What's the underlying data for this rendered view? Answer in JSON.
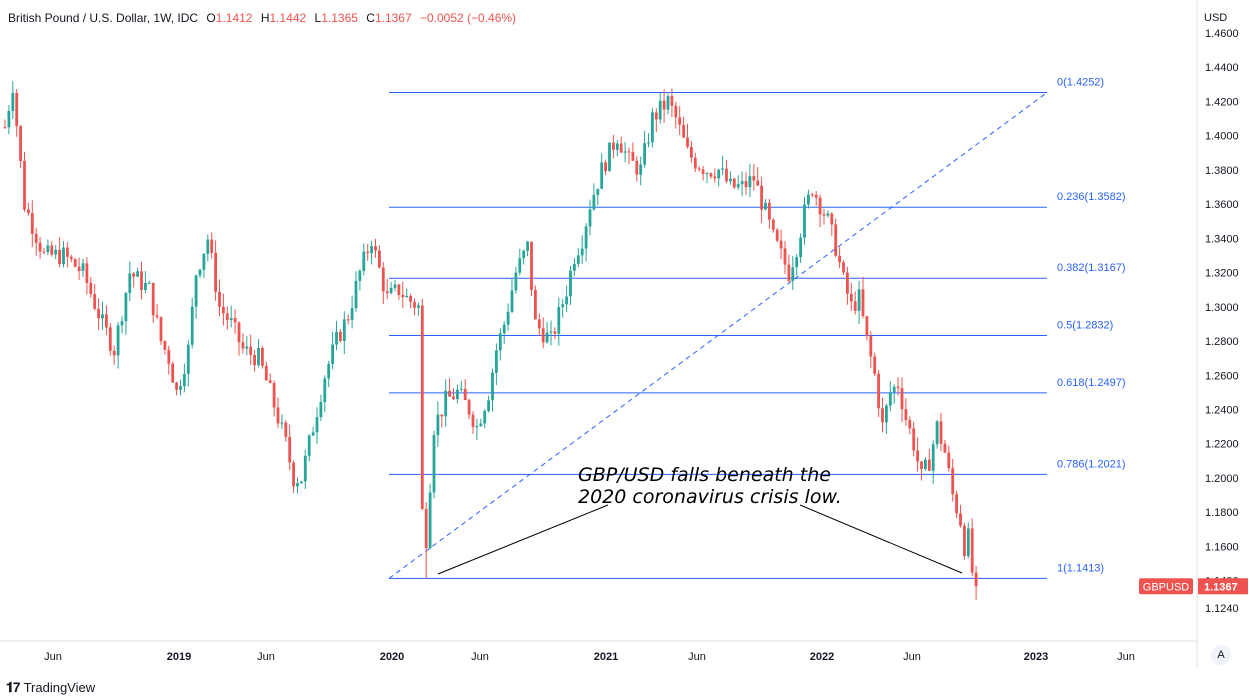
{
  "header": {
    "symbol": "British Pound / U.S. Dollar, 1W, IDC",
    "open_label": "O",
    "open": "1.1412",
    "high_label": "H",
    "high": "1.1442",
    "low_label": "L",
    "low": "1.1365",
    "close_label": "C",
    "close": "1.1367",
    "change": "−0.0052 (−0.46%)"
  },
  "brand": "TradingView",
  "auto_label": "A",
  "chart_data": {
    "type": "candlestick",
    "title": "British Pound / U.S. Dollar, 1W, IDC",
    "currency_label": "USD",
    "y_range": [
      1.104,
      1.4711
    ],
    "y_ticks": [
      "1.4600",
      "1.4400",
      "1.4200",
      "1.4000",
      "1.3800",
      "1.3600",
      "1.3400",
      "1.3200",
      "1.3000",
      "1.2800",
      "1.2600",
      "1.2400",
      "1.2200",
      "1.2000",
      "1.1800",
      "1.1600",
      "1.1400",
      "1.1240"
    ],
    "x_ticks": [
      "Jun",
      "2019",
      "Jun",
      "2020",
      "Jun",
      "2021",
      "Jun",
      "2022",
      "Jun",
      "2023",
      "Jun"
    ],
    "price_tag": {
      "symbol": "GBPUSD",
      "value": "1.1367",
      "color": "#ef5350"
    },
    "colors": {
      "up": "#26a69a",
      "down": "#ef5350",
      "fib": "#2962ff"
    },
    "fib_levels": [
      {
        "ratio": "0",
        "price": 1.4252,
        "label": "0(1.4252)"
      },
      {
        "ratio": "0.236",
        "price": 1.3582,
        "label": "0.236(1.3582)"
      },
      {
        "ratio": "0.382",
        "price": 1.3167,
        "label": "0.382(1.3167)"
      },
      {
        "ratio": "0.5",
        "price": 1.2832,
        "label": "0.5(1.2832)"
      },
      {
        "ratio": "0.618",
        "price": 1.2497,
        "label": "0.618(1.2497)"
      },
      {
        "ratio": "0.786",
        "price": 1.2021,
        "label": "0.786(1.2021)"
      },
      {
        "ratio": "1",
        "price": 1.1413,
        "label": "1(1.1413)"
      }
    ],
    "annotation": {
      "lines": [
        "GBP/USD falls beneath the",
        "2020 coronavirus crisis low."
      ]
    },
    "path": [
      [
        0,
        1.405
      ],
      [
        2,
        1.43
      ],
      [
        5,
        1.36
      ],
      [
        10,
        1.33
      ],
      [
        15,
        1.33
      ],
      [
        20,
        1.32
      ],
      [
        25,
        1.29
      ],
      [
        28,
        1.275
      ],
      [
        32,
        1.32
      ],
      [
        37,
        1.31
      ],
      [
        40,
        1.28
      ],
      [
        42,
        1.27
      ],
      [
        44,
        1.25
      ],
      [
        47,
        1.275
      ],
      [
        49,
        1.32
      ],
      [
        52,
        1.34
      ],
      [
        55,
        1.3
      ],
      [
        58,
        1.29
      ],
      [
        61,
        1.275
      ],
      [
        65,
        1.27
      ],
      [
        68,
        1.25
      ],
      [
        72,
        1.22
      ],
      [
        74,
        1.2
      ],
      [
        76,
        1.2
      ],
      [
        79,
        1.23
      ],
      [
        82,
        1.26
      ],
      [
        85,
        1.28
      ],
      [
        88,
        1.295
      ],
      [
        91,
        1.32
      ],
      [
        94,
        1.34
      ],
      [
        95,
        1.33
      ],
      [
        98,
        1.305
      ],
      [
        101,
        1.31
      ],
      [
        103,
        1.305
      ],
      [
        106,
        1.3
      ],
      [
        107,
        1.18
      ],
      [
        108,
        1.165
      ],
      [
        110,
        1.23
      ],
      [
        113,
        1.245
      ],
      [
        116,
        1.25
      ],
      [
        119,
        1.24
      ],
      [
        121,
        1.23
      ],
      [
        124,
        1.25
      ],
      [
        126,
        1.275
      ],
      [
        128,
        1.29
      ],
      [
        131,
        1.32
      ],
      [
        134,
        1.335
      ],
      [
        136,
        1.29
      ],
      [
        138,
        1.285
      ],
      [
        140,
        1.28
      ],
      [
        142,
        1.295
      ],
      [
        144,
        1.31
      ],
      [
        146,
        1.33
      ],
      [
        148,
        1.34
      ],
      [
        150,
        1.36
      ],
      [
        153,
        1.38
      ],
      [
        155,
        1.39
      ],
      [
        157,
        1.4
      ],
      [
        160,
        1.385
      ],
      [
        163,
        1.38
      ],
      [
        166,
        1.41
      ],
      [
        170,
        1.42
      ],
      [
        172,
        1.41
      ],
      [
        175,
        1.39
      ],
      [
        177,
        1.385
      ],
      [
        180,
        1.38
      ],
      [
        183,
        1.38
      ],
      [
        186,
        1.37
      ],
      [
        189,
        1.37
      ],
      [
        192,
        1.375
      ],
      [
        195,
        1.355
      ],
      [
        197,
        1.34
      ],
      [
        199,
        1.33
      ],
      [
        201,
        1.32
      ],
      [
        203,
        1.335
      ],
      [
        205,
        1.355
      ],
      [
        207,
        1.37
      ],
      [
        209,
        1.36
      ],
      [
        211,
        1.35
      ],
      [
        213,
        1.335
      ],
      [
        215,
        1.315
      ],
      [
        217,
        1.3
      ],
      [
        219,
        1.305
      ],
      [
        221,
        1.28
      ],
      [
        223,
        1.26
      ],
      [
        225,
        1.23
      ],
      [
        227,
        1.25
      ],
      [
        229,
        1.255
      ],
      [
        231,
        1.235
      ],
      [
        233,
        1.22
      ],
      [
        235,
        1.2
      ],
      [
        237,
        1.21
      ],
      [
        239,
        1.23
      ],
      [
        241,
        1.215
      ],
      [
        243,
        1.19
      ],
      [
        245,
        1.175
      ],
      [
        246,
        1.16
      ],
      [
        247,
        1.165
      ],
      [
        248,
        1.145
      ],
      [
        249,
        1.1367
      ]
    ]
  }
}
